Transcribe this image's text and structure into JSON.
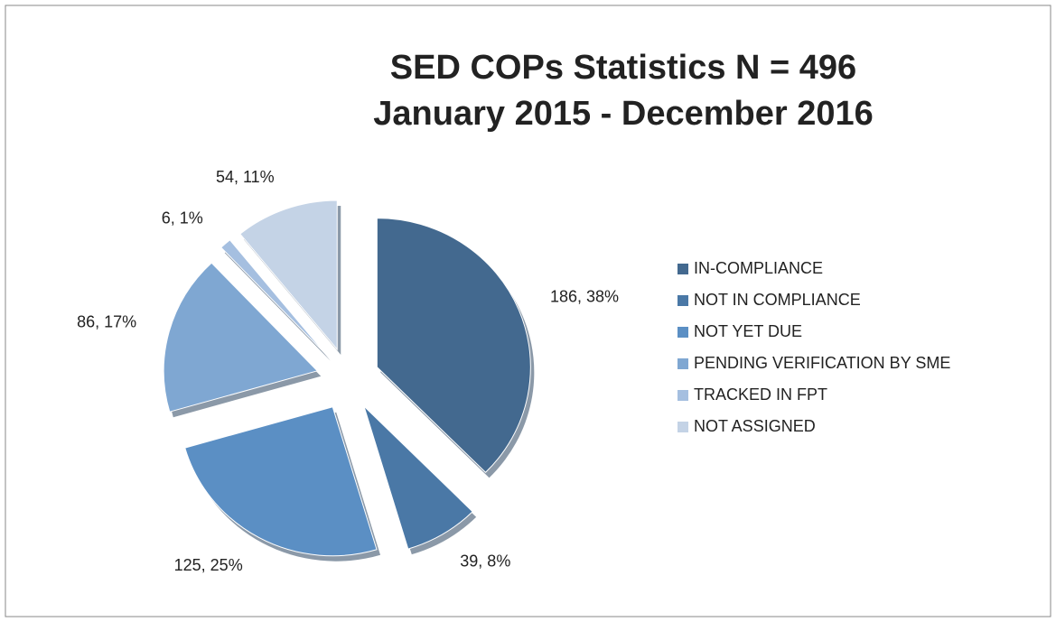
{
  "chart_data": {
    "type": "pie",
    "title": "SED COPs Statistics N = 496",
    "subtitle": "January 2015 - December 2016",
    "categories": [
      "IN-COMPLIANCE",
      "NOT IN COMPLIANCE",
      "NOT YET DUE",
      "PENDING VERIFICATION BY SME",
      "TRACKED IN FPT",
      "NOT ASSIGNED"
    ],
    "values": [
      186,
      39,
      125,
      86,
      6,
      54
    ],
    "value_labels": [
      "186, 38%",
      "39, 8%",
      "125, 25%",
      "86, 17%",
      "6, 1%",
      "54, 11%"
    ],
    "colors": [
      "#43698f",
      "#4a78a6",
      "#5b8fc4",
      "#7fa7d2",
      "#a5bfe0",
      "#c4d3e6"
    ],
    "legend": "right"
  }
}
